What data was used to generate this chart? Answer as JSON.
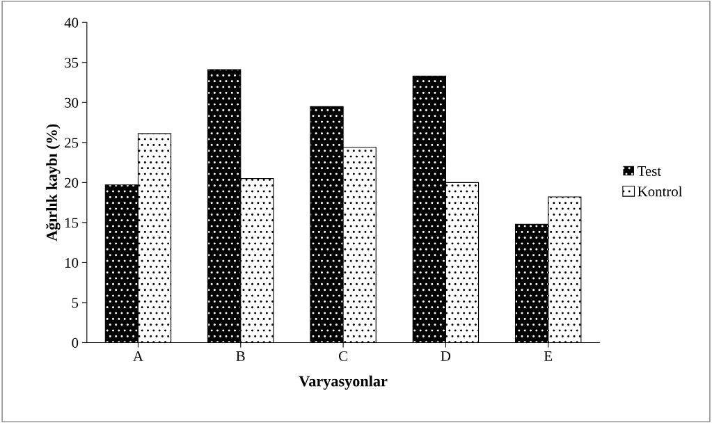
{
  "chart_data": {
    "type": "bar",
    "xlabel": "Varyasyonlar",
    "ylabel": "Ağırlık kaybı (%)",
    "categories": [
      "A",
      "B",
      "C",
      "D",
      "E"
    ],
    "series": [
      {
        "name": "Test",
        "color": "#000000",
        "values": [
          19.7,
          34.1,
          29.5,
          33.3,
          14.8
        ]
      },
      {
        "name": "Kontrol",
        "color": "#ffffff",
        "values": [
          26.1,
          20.5,
          24.4,
          20.0,
          18.2
        ]
      }
    ],
    "ylim": [
      0,
      40
    ],
    "yticks": [
      0,
      5,
      10,
      15,
      20,
      25,
      30,
      35,
      40
    ],
    "grid": false,
    "legend": "right"
  }
}
